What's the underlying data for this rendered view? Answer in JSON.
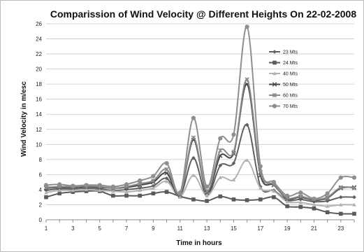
{
  "chart_data": {
    "type": "line",
    "title": "Comparission of Wind Velocity @ Different Heights On 22-02-2008",
    "xlabel": "Time in hours",
    "ylabel": "Wind Velocity in m/esc",
    "x": [
      1,
      2,
      3,
      4,
      5,
      6,
      7,
      8,
      9,
      10,
      11,
      12,
      13,
      14,
      15,
      16,
      17,
      18,
      19,
      20,
      21,
      22,
      23,
      24
    ],
    "xticks": [
      1,
      3,
      5,
      7,
      9,
      11,
      13,
      15,
      17,
      19,
      21,
      23
    ],
    "xlim": [
      1,
      24
    ],
    "ylim": [
      0,
      26
    ],
    "yticks": [
      0,
      2,
      4,
      6,
      8,
      10,
      12,
      14,
      16,
      18,
      20,
      22,
      24,
      26
    ],
    "grid": "horizontal",
    "legend": "inside-right",
    "series": [
      {
        "name": "23 Mts",
        "color": "#606060",
        "marker": "diamond",
        "values": [
          3.9,
          4.1,
          4.1,
          4.2,
          4.1,
          3.9,
          4.0,
          4.2,
          4.5,
          5.5,
          3.2,
          8.2,
          3.2,
          7.2,
          7.5,
          12.6,
          4.4,
          3.9,
          2.6,
          2.7,
          2.4,
          2.5,
          3.0,
          3.0
        ]
      },
      {
        "name": "24 Mts",
        "color": "#5a5a5a",
        "marker": "square",
        "values": [
          3.0,
          3.5,
          3.7,
          3.8,
          3.8,
          3.2,
          3.2,
          3.2,
          3.5,
          3.7,
          3.1,
          2.7,
          2.5,
          3.1,
          2.7,
          2.6,
          2.7,
          3.0,
          1.8,
          1.7,
          1.5,
          1.0,
          0.8,
          0.8
        ]
      },
      {
        "name": "40 Mts",
        "color": "#b2b2b2",
        "marker": "triangle",
        "values": [
          3.6,
          3.9,
          3.9,
          4.0,
          3.9,
          3.8,
          3.7,
          3.9,
          4.2,
          5.1,
          3.1,
          5.9,
          3.2,
          5.6,
          5.3,
          7.9,
          4.2,
          3.8,
          2.4,
          2.3,
          2.0,
          1.8,
          2.0,
          2.0
        ]
      },
      {
        "name": "50 Mts",
        "color": "#454545",
        "marker": "cross",
        "values": [
          4.2,
          4.3,
          4.3,
          4.4,
          4.3,
          4.2,
          4.3,
          4.6,
          5.0,
          6.2,
          3.3,
          10.6,
          3.6,
          8.5,
          8.8,
          18.0,
          5.9,
          4.6,
          2.8,
          3.0,
          2.6,
          2.9,
          4.2,
          4.3
        ]
      },
      {
        "name": "60 Mts",
        "color": "#8a8a8a",
        "marker": "star",
        "values": [
          4.3,
          4.4,
          4.4,
          4.5,
          4.4,
          4.2,
          4.4,
          4.8,
          5.2,
          6.7,
          3.4,
          10.9,
          3.8,
          9.2,
          9.0,
          18.6,
          6.3,
          4.7,
          2.9,
          3.1,
          2.7,
          3.0,
          4.3,
          4.2
        ]
      },
      {
        "name": "70 Mts",
        "color": "#8f8f8f",
        "marker": "circle",
        "values": [
          4.6,
          4.7,
          4.5,
          4.6,
          4.6,
          4.4,
          4.7,
          5.2,
          5.8,
          7.5,
          3.6,
          13.5,
          4.4,
          10.8,
          11.3,
          25.6,
          7.1,
          5.0,
          3.2,
          3.6,
          2.8,
          3.5,
          5.6,
          5.6
        ]
      }
    ]
  }
}
